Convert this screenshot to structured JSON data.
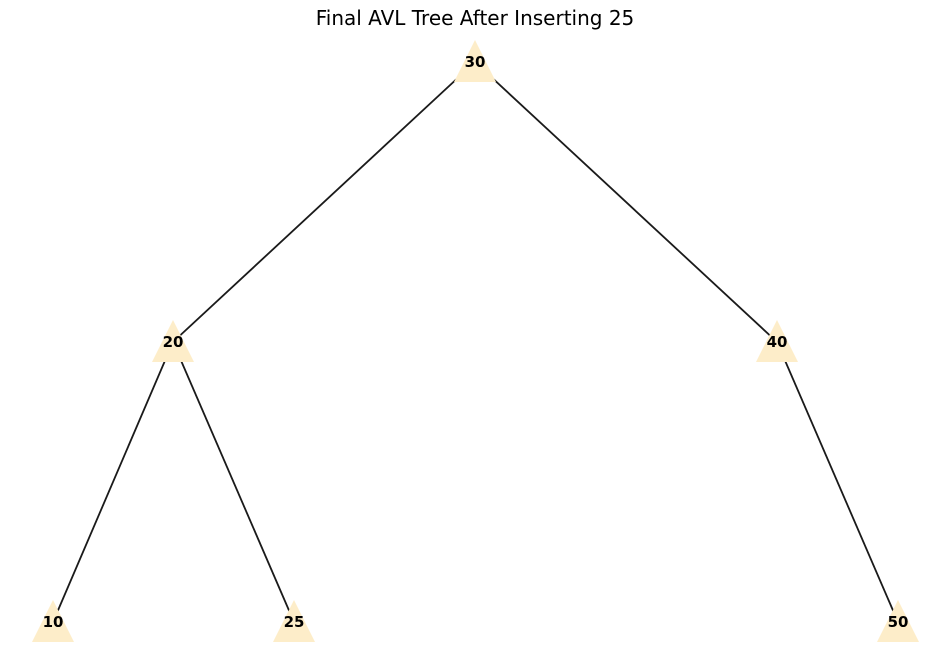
{
  "title": "Final AVL Tree After Inserting 25",
  "colors": {
    "node_fill": "#fdedc9",
    "edge": "#1a1a1a",
    "label": "#000000"
  },
  "tree": {
    "node_shape": "triangle",
    "nodes": [
      {
        "id": "n30",
        "label": "30"
      },
      {
        "id": "n20",
        "label": "20"
      },
      {
        "id": "n40",
        "label": "40"
      },
      {
        "id": "n10",
        "label": "10"
      },
      {
        "id": "n25",
        "label": "25"
      },
      {
        "id": "n50",
        "label": "50"
      }
    ],
    "edges": [
      {
        "from": "n30",
        "to": "n20"
      },
      {
        "from": "n30",
        "to": "n40"
      },
      {
        "from": "n20",
        "to": "n10"
      },
      {
        "from": "n20",
        "to": "n25"
      },
      {
        "from": "n40",
        "to": "n50"
      }
    ]
  }
}
